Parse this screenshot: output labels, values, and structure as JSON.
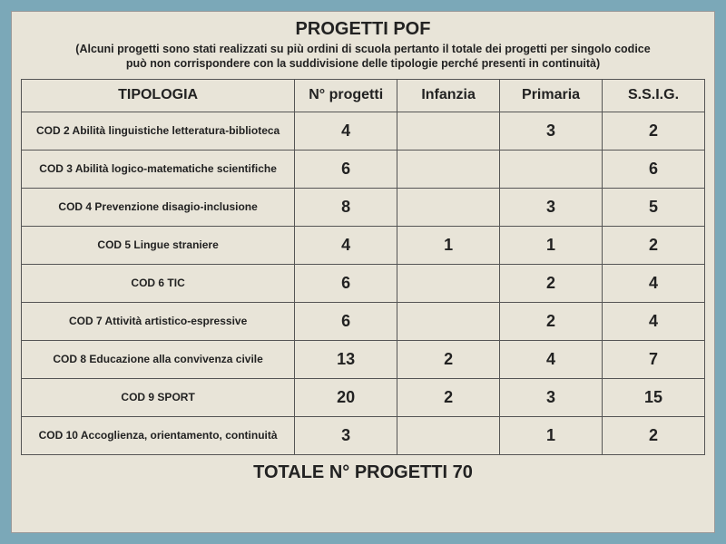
{
  "title": "PROGETTI POF",
  "subtitle_line1": "(Alcuni progetti sono stati realizzati su più ordini di scuola pertanto il totale dei progetti per singolo codice",
  "subtitle_line2": "può non corrispondere  con la suddivisione delle tipologie perché presenti in continuità)",
  "headers": {
    "tipologia": "TIPOLOGIA",
    "nprogetti": "N° progetti",
    "infanzia": "Infanzia",
    "primaria": "Primaria",
    "ssig": "S.S.I.G."
  },
  "rows": [
    {
      "label": "COD 2 Abilità linguistiche letteratura-biblioteca",
      "n": "4",
      "inf": "",
      "pri": "3",
      "ssig": "2"
    },
    {
      "label": "COD 3 Abilità logico-matematiche scientifiche",
      "n": "6",
      "inf": "",
      "pri": "",
      "ssig": "6"
    },
    {
      "label": "COD 4 Prevenzione disagio-inclusione",
      "n": "8",
      "inf": "",
      "pri": "3",
      "ssig": "5"
    },
    {
      "label": "COD 5 Lingue straniere",
      "n": "4",
      "inf": "1",
      "pri": "1",
      "ssig": "2"
    },
    {
      "label": "COD 6 TIC",
      "n": "6",
      "inf": "",
      "pri": "2",
      "ssig": "4"
    },
    {
      "label": "COD 7 Attività artistico-espressive",
      "n": "6",
      "inf": "",
      "pri": "2",
      "ssig": "4"
    },
    {
      "label": "COD 8 Educazione alla convivenza civile",
      "n": "13",
      "inf": "2",
      "pri": "4",
      "ssig": "7"
    },
    {
      "label": "COD 9 SPORT",
      "n": "20",
      "inf": "2",
      "pri": "3",
      "ssig": "15"
    },
    {
      "label": "COD 10 Accoglienza, orientamento, continuità",
      "n": "3",
      "inf": "",
      "pri": "1",
      "ssig": "2"
    }
  ],
  "totale_label": "TOTALE N° PROGETTI  70",
  "colors": {
    "page_bg": "#e8e4d8",
    "outer_bg": "#7ba8b8",
    "border": "#555",
    "text": "#222"
  }
}
